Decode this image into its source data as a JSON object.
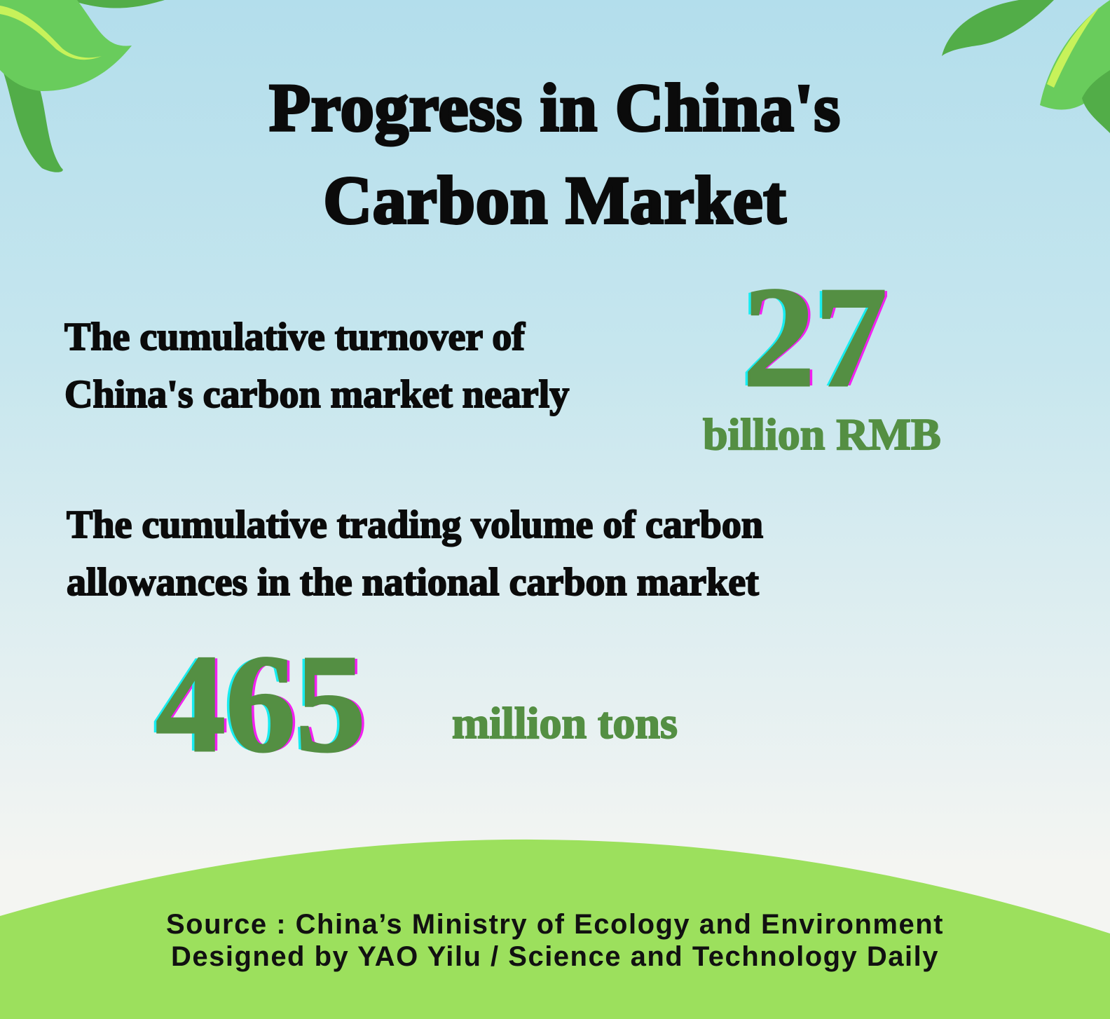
{
  "title": {
    "line1": "Progress in China's",
    "line2": "Carbon Market"
  },
  "stat_turnover": {
    "text_line1": "The cumulative turnover of",
    "text_line2": "China's carbon market nearly",
    "value": "27",
    "unit": "billion RMB"
  },
  "stat_volume": {
    "text_line1": "The cumulative trading volume of carbon",
    "text_line2": "allowances in the national carbon market",
    "value": "465",
    "unit": "million tons"
  },
  "footer": {
    "source": "Source : China’s Ministry of Ecology and Environment",
    "credit": "Designed by YAO Yilu / Science and Technology Daily"
  },
  "colors": {
    "accent_green": "#548f43",
    "hill_green": "#9ce05d",
    "leaf_green": "#69cc5c",
    "shadow_cyan": "#18ecf0",
    "shadow_magenta": "#f21ff0"
  },
  "icons": [
    "leaf-decoration-top-left",
    "leaf-decoration-top-right"
  ]
}
